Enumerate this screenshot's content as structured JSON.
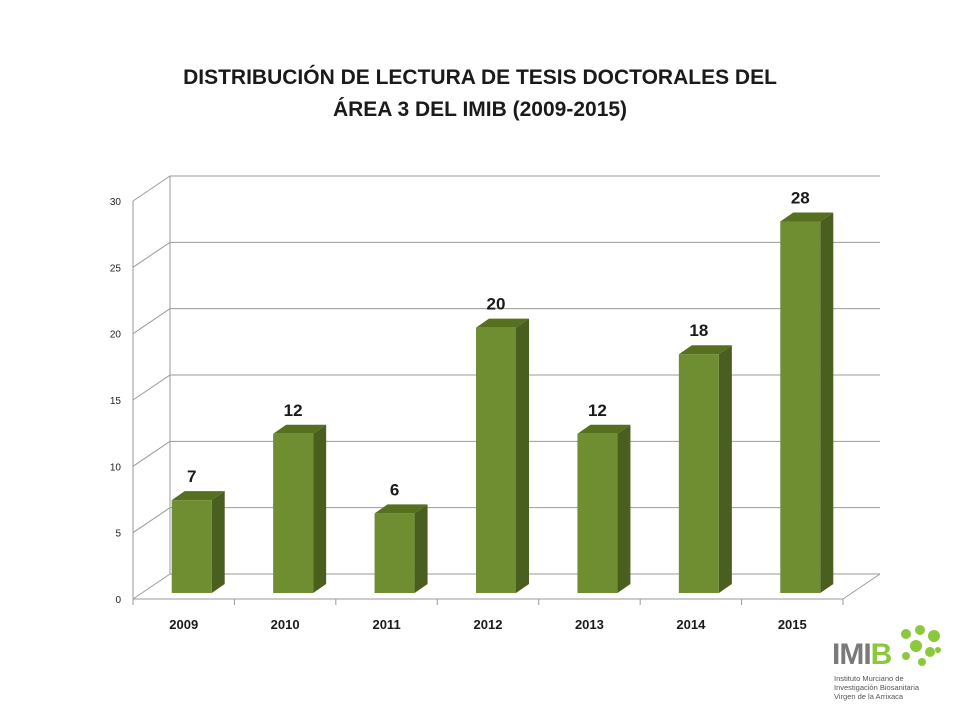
{
  "chart_data": {
    "type": "bar",
    "title_line1": "DISTRIBUCIÓN DE LECTURA DE TESIS DOCTORALES DEL",
    "title_line2": "ÁREA 3 DEL IMIB (2009-2015)",
    "categories": [
      "2009",
      "2010",
      "2011",
      "2012",
      "2013",
      "2014",
      "2015"
    ],
    "values": [
      7,
      12,
      6,
      20,
      12,
      18,
      28
    ],
    "yticks": [
      0,
      5,
      10,
      15,
      20,
      25,
      30
    ],
    "ylim": [
      0,
      30
    ],
    "grid": true,
    "three_d": true,
    "data_labels": true,
    "colors": {
      "bar_front": "#6f8d31",
      "bar_side": "#4a5e1f",
      "bar_top": "#56701f",
      "grid": "#9a9a9a"
    }
  },
  "logo": {
    "brand_main": "IMI",
    "brand_accent": "B",
    "line1": "Instituto Murciano de",
    "line2": "Investigación Biosanitaria",
    "line3": "Virgen de la Arrixaca",
    "accent_color": "#8cc83c"
  }
}
